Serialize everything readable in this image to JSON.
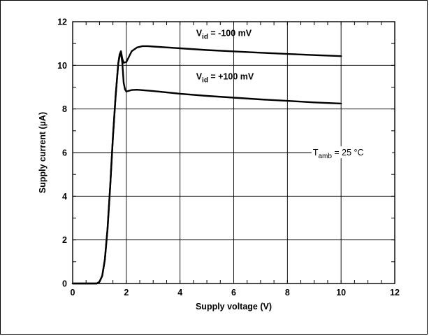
{
  "chart_data": {
    "type": "line",
    "title": "",
    "xlabel": "Supply voltage (V)",
    "ylabel": "Supply current  (µA)",
    "xlim": [
      0,
      12
    ],
    "ylim": [
      0,
      12
    ],
    "xticks": [
      0,
      2,
      4,
      6,
      8,
      10,
      12
    ],
    "yticks": [
      0,
      2,
      4,
      6,
      8,
      10,
      12
    ],
    "grid": true,
    "series": [
      {
        "name": "Vid = -100 mV",
        "label_main": "V",
        "label_sub": "id",
        "label_rest": " = -100 mV",
        "x": [
          0,
          0.9,
          1.0,
          1.1,
          1.2,
          1.3,
          1.4,
          1.5,
          1.6,
          1.7,
          1.75,
          1.8,
          1.85,
          1.9,
          2.0,
          2.1,
          2.2,
          2.4,
          2.6,
          2.8,
          3.0,
          4.0,
          5.0,
          6.0,
          7.0,
          8.0,
          9.0,
          10.0
        ],
        "y": [
          0,
          0,
          0.08,
          0.35,
          1.1,
          2.5,
          4.5,
          6.7,
          8.6,
          10.1,
          10.5,
          10.65,
          10.3,
          10.12,
          10.15,
          10.4,
          10.65,
          10.82,
          10.88,
          10.88,
          10.86,
          10.78,
          10.7,
          10.64,
          10.58,
          10.52,
          10.47,
          10.42
        ]
      },
      {
        "name": "Vid = +100 mV",
        "label_main": "V",
        "label_sub": "id",
        "label_rest": " = +100 mV",
        "x": [
          0,
          0.9,
          1.0,
          1.1,
          1.2,
          1.3,
          1.4,
          1.5,
          1.6,
          1.7,
          1.75,
          1.8,
          1.85,
          1.9,
          1.95,
          2.0,
          2.2,
          2.4,
          3.0,
          4.0,
          5.0,
          6.0,
          7.0,
          8.0,
          9.0,
          10.0
        ],
        "y": [
          0,
          0,
          0.08,
          0.35,
          1.1,
          2.5,
          4.5,
          6.7,
          8.6,
          10.1,
          10.4,
          10.6,
          10.1,
          9.2,
          8.9,
          8.8,
          8.87,
          8.88,
          8.82,
          8.7,
          8.6,
          8.52,
          8.44,
          8.37,
          8.3,
          8.25
        ]
      }
    ],
    "annotations": [
      {
        "main": "T",
        "sub": "amb",
        "rest": " = 25 °C"
      }
    ]
  }
}
